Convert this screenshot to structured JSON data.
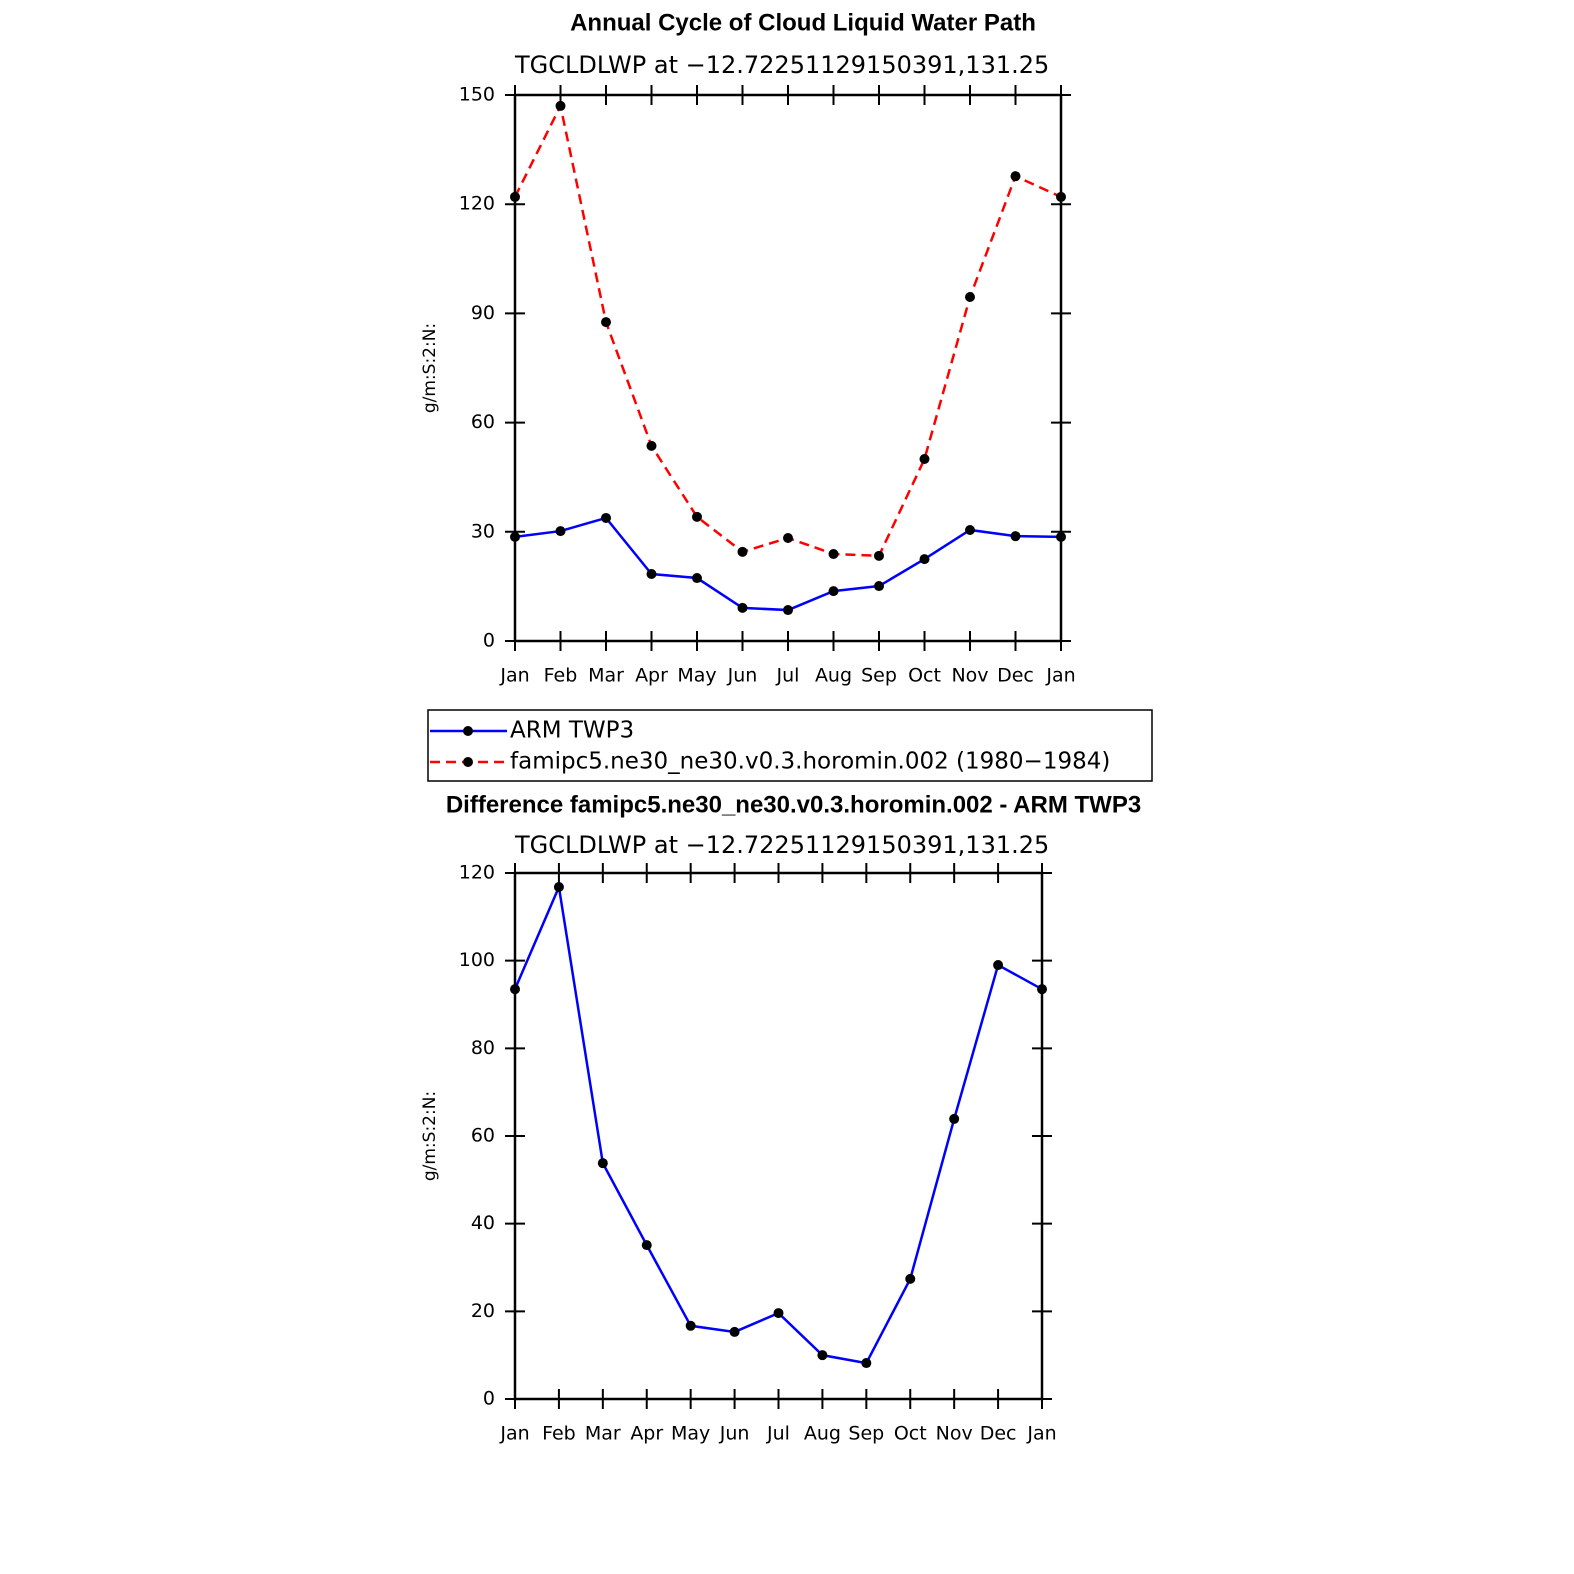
{
  "chart_data": [
    {
      "type": "line",
      "title": "Annual Cycle of Cloud Liquid Water Path",
      "subtitle": "TGCLDLWP at −12.72251129150391,131.25",
      "y_label": "g/m:S:2:N:",
      "categories": [
        "Jan",
        "Feb",
        "Mar",
        "Apr",
        "May",
        "Jun",
        "Jul",
        "Aug",
        "Sep",
        "Oct",
        "Nov",
        "Dec",
        "Jan"
      ],
      "ylim": [
        0,
        150
      ],
      "yticks": [
        0,
        30,
        60,
        90,
        120,
        150
      ],
      "series": [
        {
          "name": "ARM TWP3",
          "color": "#0000ff",
          "dash": false,
          "values": [
            28.6,
            30.2,
            33.8,
            18.4,
            17.3,
            9.1,
            8.5,
            13.7,
            15.1,
            22.5,
            30.5,
            28.8,
            28.6
          ]
        },
        {
          "name": "famipc5.ne30_ne30.v0.3.horomin.002 (1980−1984)",
          "color": "#ff0000",
          "dash": true,
          "values": [
            122,
            147,
            87.6,
            53.6,
            34.1,
            24.5,
            28.3,
            23.9,
            23.4,
            50,
            94.5,
            127.7,
            122
          ]
        }
      ]
    },
    {
      "type": "line",
      "title": "Difference famipc5.ne30_ne30.v0.3.horomin.002 - ARM TWP3",
      "subtitle": "TGCLDLWP at −12.72251129150391,131.25",
      "y_label": "g/m:S:2:N:",
      "categories": [
        "Jan",
        "Feb",
        "Mar",
        "Apr",
        "May",
        "Jun",
        "Jul",
        "Aug",
        "Sep",
        "Oct",
        "Nov",
        "Dec",
        "Jan"
      ],
      "ylim": [
        0,
        120
      ],
      "yticks": [
        0,
        20,
        40,
        60,
        80,
        100,
        120
      ],
      "color": "#0000ff",
      "values": [
        93.5,
        116.8,
        53.8,
        35.1,
        16.7,
        15.3,
        19.6,
        10.0,
        8.2,
        27.4,
        63.9,
        99,
        93.5
      ]
    }
  ]
}
